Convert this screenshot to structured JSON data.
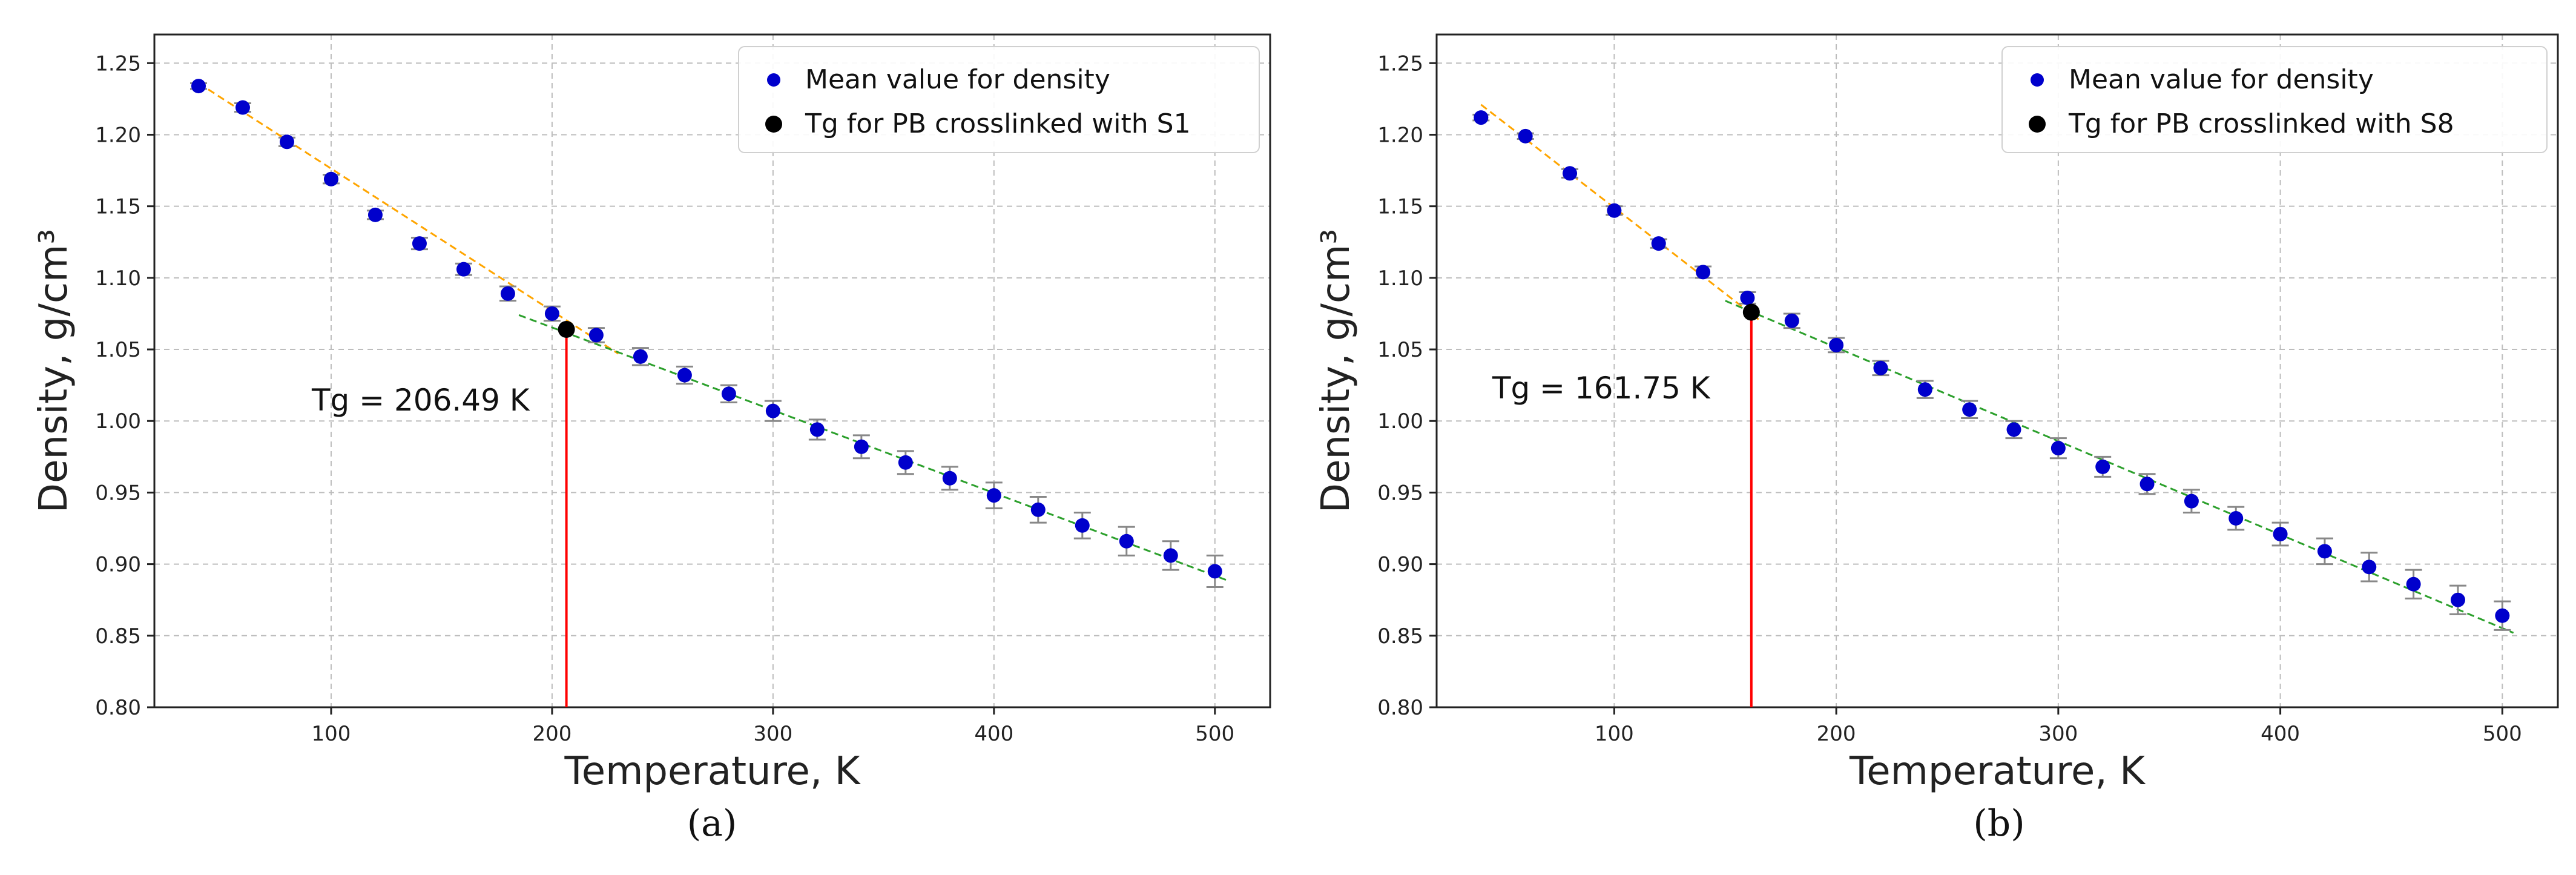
{
  "chart_data": [
    {
      "type": "scatter",
      "panel_label": "(a)",
      "xlabel": "Temperature, K",
      "ylabel": "Density, g/cm³",
      "xlim": [
        20,
        525
      ],
      "ylim": [
        0.8,
        1.27
      ],
      "x_ticks": [
        100,
        200,
        300,
        400,
        500
      ],
      "x_tick_labels": [
        "100",
        "200",
        "300",
        "400",
        "500"
      ],
      "y_ticks": [
        0.8,
        0.85,
        0.9,
        0.95,
        1.0,
        1.05,
        1.1,
        1.15,
        1.2,
        1.25
      ],
      "y_tick_labels": [
        "0.80",
        "0.85",
        "0.90",
        "0.95",
        "1.00",
        "1.05",
        "1.10",
        "1.15",
        "1.20",
        "1.25"
      ],
      "grid": true,
      "legend_position": "top-right",
      "legend": [
        "Mean value for density",
        "Tg for PB crosslinked with S1"
      ],
      "annotation": "Tg = 206.49 K",
      "series": [
        {
          "name": "Mean value for density",
          "color": "#0000cc",
          "x": [
            40,
            60,
            80,
            100,
            120,
            140,
            160,
            180,
            200,
            220,
            240,
            260,
            280,
            300,
            320,
            340,
            360,
            380,
            400,
            420,
            440,
            460,
            480,
            500
          ],
          "y": [
            1.234,
            1.219,
            1.195,
            1.169,
            1.144,
            1.124,
            1.106,
            1.089,
            1.075,
            1.06,
            1.045,
            1.032,
            1.019,
            1.007,
            0.994,
            0.982,
            0.971,
            0.96,
            0.948,
            0.938,
            0.927,
            0.916,
            0.906,
            0.895
          ],
          "err": [
            0.002,
            0.003,
            0.003,
            0.003,
            0.003,
            0.004,
            0.004,
            0.005,
            0.005,
            0.005,
            0.006,
            0.006,
            0.006,
            0.007,
            0.007,
            0.008,
            0.008,
            0.008,
            0.009,
            0.009,
            0.009,
            0.01,
            0.01,
            0.011
          ]
        }
      ],
      "fit_low": {
        "color": "#ffa500",
        "x": [
          40,
          230
        ],
        "y": [
          1.236,
          1.047
        ]
      },
      "fit_high": {
        "color": "#2ca02c",
        "x": [
          185,
          505
        ],
        "y": [
          1.074,
          0.889
        ]
      },
      "tg_point": {
        "name": "Tg for PB crosslinked with S1",
        "color": "#000000",
        "x": 206.49,
        "y": 1.064
      },
      "tg_line_color": "#ff0000",
      "errorbar_color": "#888888"
    },
    {
      "type": "scatter",
      "panel_label": "(b)",
      "xlabel": "Temperature, K",
      "ylabel": "Density, g/cm³",
      "xlim": [
        20,
        525
      ],
      "ylim": [
        0.8,
        1.27
      ],
      "x_ticks": [
        100,
        200,
        300,
        400,
        500
      ],
      "x_tick_labels": [
        "100",
        "200",
        "300",
        "400",
        "500"
      ],
      "y_ticks": [
        0.8,
        0.85,
        0.9,
        0.95,
        1.0,
        1.05,
        1.1,
        1.15,
        1.2,
        1.25
      ],
      "y_tick_labels": [
        "0.80",
        "0.85",
        "0.90",
        "0.95",
        "1.00",
        "1.05",
        "1.10",
        "1.15",
        "1.20",
        "1.25"
      ],
      "grid": true,
      "legend_position": "top-right",
      "legend": [
        "Mean value for density",
        "Tg for PB crosslinked with S8"
      ],
      "annotation": "Tg = 161.75 K",
      "series": [
        {
          "name": "Mean value for density",
          "color": "#0000cc",
          "x": [
            40,
            60,
            80,
            100,
            120,
            140,
            160,
            180,
            200,
            220,
            240,
            260,
            280,
            300,
            320,
            340,
            360,
            380,
            400,
            420,
            440,
            460,
            480,
            500
          ],
          "y": [
            1.212,
            1.199,
            1.173,
            1.147,
            1.124,
            1.104,
            1.086,
            1.07,
            1.053,
            1.037,
            1.022,
            1.008,
            0.994,
            0.981,
            0.968,
            0.956,
            0.944,
            0.932,
            0.921,
            0.909,
            0.898,
            0.886,
            0.875,
            0.864
          ],
          "err": [
            0.002,
            0.002,
            0.003,
            0.003,
            0.003,
            0.004,
            0.004,
            0.005,
            0.005,
            0.005,
            0.006,
            0.006,
            0.006,
            0.007,
            0.007,
            0.007,
            0.008,
            0.008,
            0.008,
            0.009,
            0.01,
            0.01,
            0.01,
            0.01
          ]
        }
      ],
      "fit_low": {
        "color": "#ffa500",
        "x": [
          40,
          165
        ],
        "y": [
          1.221,
          1.071
        ]
      },
      "fit_high": {
        "color": "#2ca02c",
        "x": [
          150,
          505
        ],
        "y": [
          1.084,
          0.852
        ]
      },
      "tg_point": {
        "name": "Tg for PB crosslinked with S8",
        "color": "#000000",
        "x": 161.75,
        "y": 1.076
      },
      "tg_line_color": "#ff0000",
      "errorbar_color": "#888888"
    }
  ]
}
